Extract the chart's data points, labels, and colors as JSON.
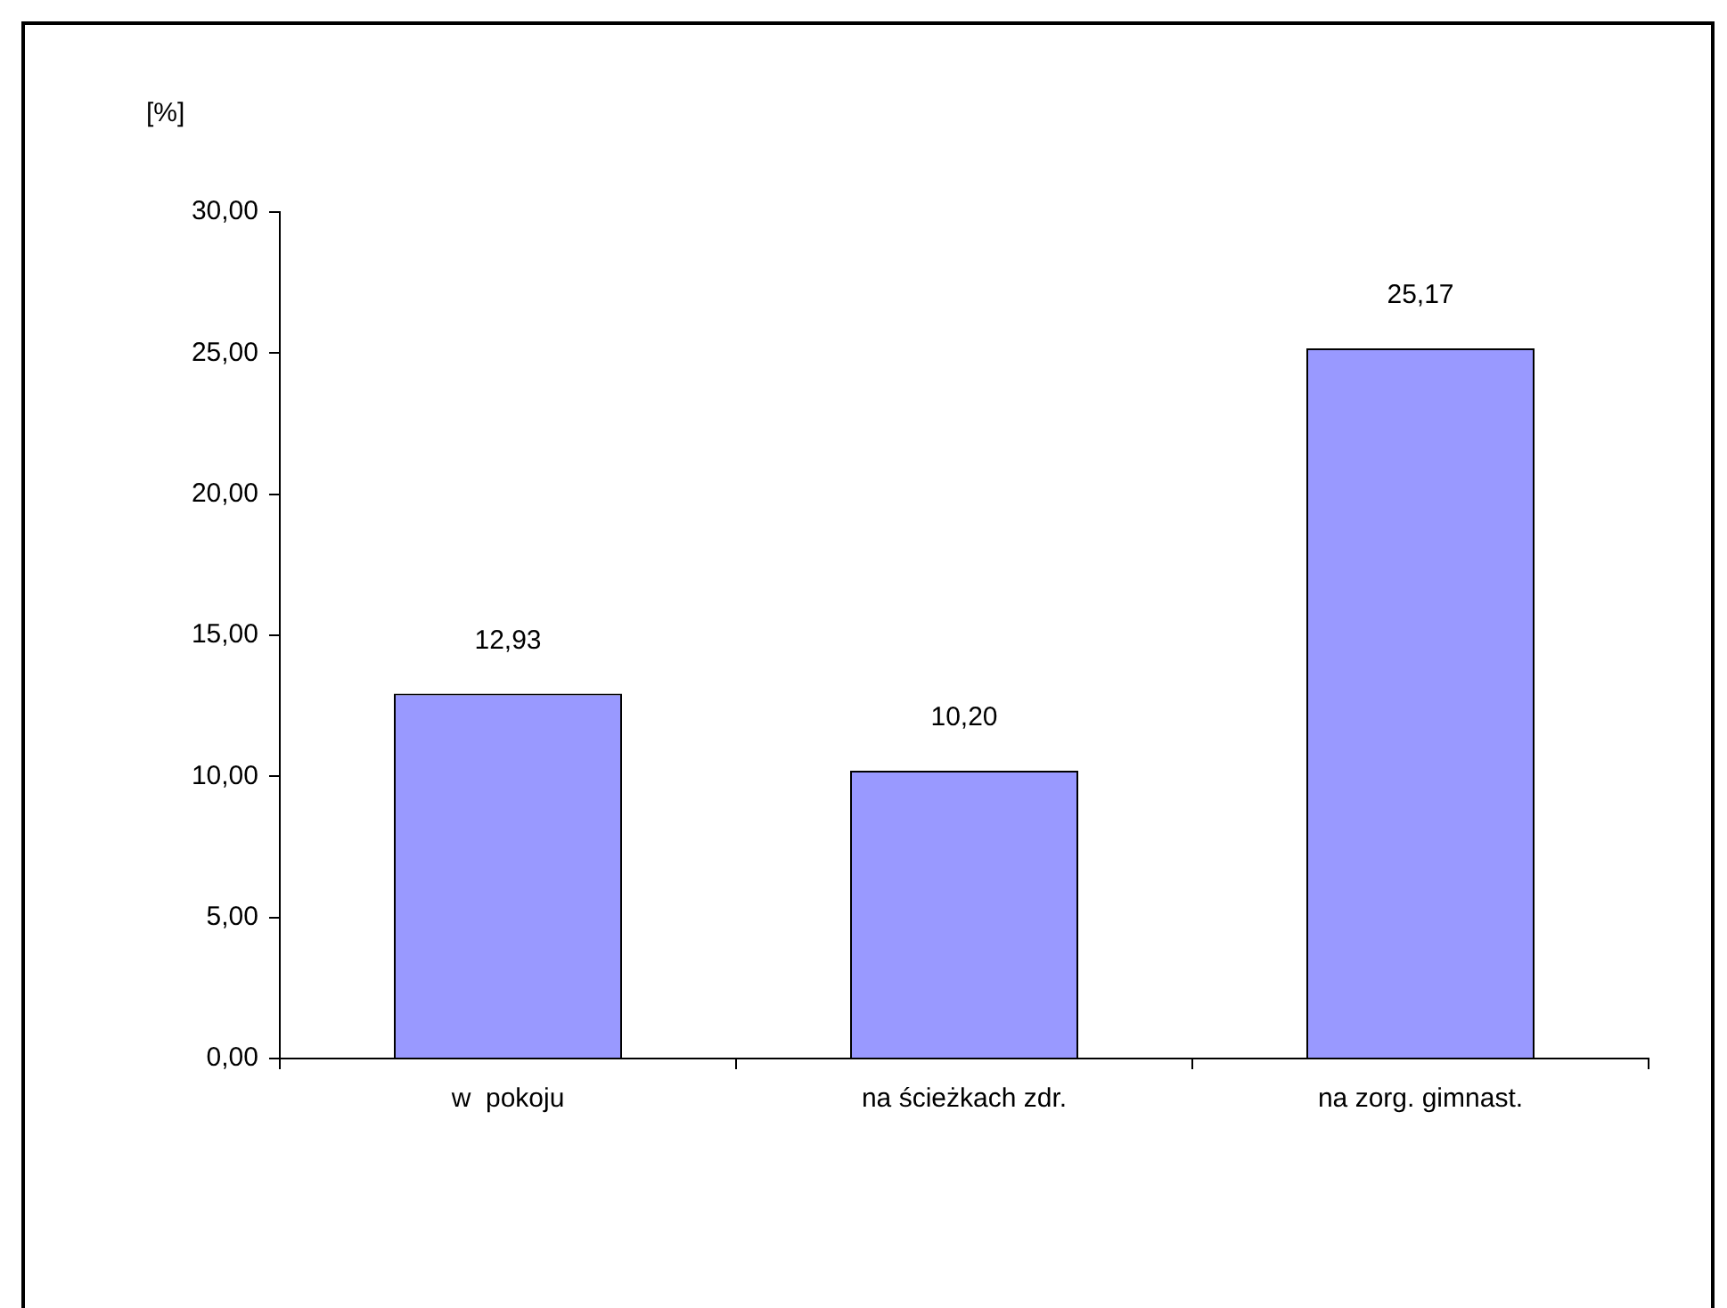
{
  "chart_data": {
    "type": "bar",
    "ylabel": "[%]",
    "categories": [
      "w  pokoju",
      "na ścieżkach zdr.",
      "na zorg. gimnast."
    ],
    "values": [
      12.93,
      10.2,
      25.17
    ],
    "value_labels": [
      "12,93",
      "10,20",
      "25,17"
    ],
    "color": "#9999ff",
    "ylim": [
      0,
      30
    ],
    "yticks": [
      {
        "value": 0,
        "label": "0,00"
      },
      {
        "value": 5,
        "label": "5,00"
      },
      {
        "value": 10,
        "label": "10,00"
      },
      {
        "value": 15,
        "label": "15,00"
      },
      {
        "value": 20,
        "label": "20,00"
      },
      {
        "value": 25,
        "label": "25,00"
      },
      {
        "value": 30,
        "label": "30,00"
      }
    ],
    "grid": false,
    "legend": false
  }
}
